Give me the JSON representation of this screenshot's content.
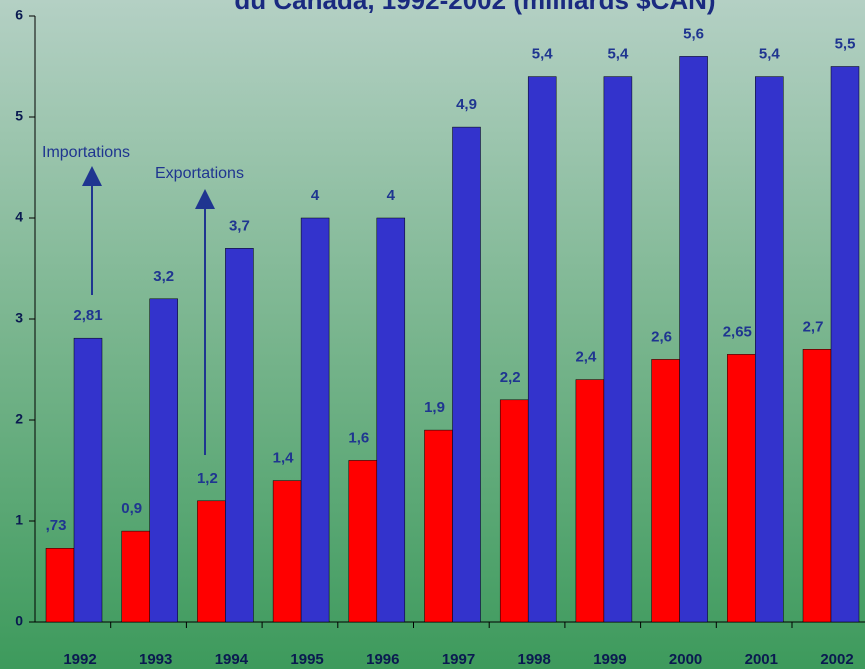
{
  "chart_data": {
    "type": "bar",
    "title": "du Canada, 1992-2002 (milliards $CAN)",
    "categories": [
      "1992",
      "1993",
      "1994",
      "1995",
      "1996",
      "1997",
      "1998",
      "1999",
      "2000",
      "2001",
      "2002"
    ],
    "series": [
      {
        "name": "Exportations",
        "color": "#ff0000",
        "values": [
          0.73,
          0.9,
          1.2,
          1.4,
          1.6,
          1.9,
          2.2,
          2.4,
          2.6,
          2.65,
          2.7
        ],
        "value_labels": [
          ",73",
          "0,9",
          "1,2",
          "1,4",
          "1,6",
          "1,9",
          "2,2",
          "2,4",
          "2,6",
          "2,65",
          "2,7"
        ]
      },
      {
        "name": "Importations",
        "color": "#3333cc",
        "values": [
          2.81,
          3.2,
          3.7,
          4,
          4,
          4.9,
          5.4,
          5.4,
          5.6,
          5.4,
          5.5
        ],
        "value_labels": [
          "2,81",
          "3,2",
          "3,7",
          "4",
          "4",
          "4,9",
          "5,4",
          "5,4",
          "5,6",
          "5,4",
          "5,5"
        ]
      }
    ],
    "ylim": [
      0,
      6
    ],
    "yticks": [
      0,
      1,
      2,
      3,
      4,
      5,
      6
    ]
  }
}
